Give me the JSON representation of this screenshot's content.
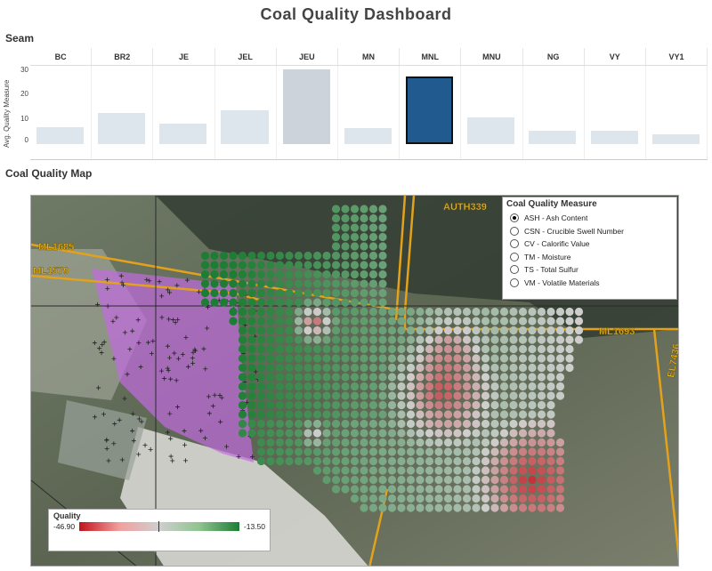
{
  "dashboard": {
    "title": "Coal Quality Dashboard"
  },
  "seam": {
    "label": "Seam",
    "y_axis_title": "Avg. Quality Measure",
    "y_ticks": [
      "30",
      "20",
      "10",
      "0"
    ],
    "columns": [
      {
        "name": "BC",
        "value": 7
      },
      {
        "name": "BR2",
        "value": 13
      },
      {
        "name": "JE",
        "value": 8.5
      },
      {
        "name": "JEL",
        "value": 14
      },
      {
        "name": "JEU",
        "value": 31,
        "state": "highlight"
      },
      {
        "name": "MN",
        "value": 6.5
      },
      {
        "name": "MNL",
        "value": 28,
        "state": "selected"
      },
      {
        "name": "MNU",
        "value": 11
      },
      {
        "name": "NG",
        "value": 5.5
      },
      {
        "name": "VY",
        "value": 5.5
      },
      {
        "name": "VY1",
        "value": 4
      }
    ],
    "ylim": [
      0,
      33
    ]
  },
  "map": {
    "label": "Coal Quality Map",
    "place_labels": [
      "AUTH339",
      "ML1685",
      "ML1579",
      "ML1693",
      "EL7436"
    ],
    "measure_panel": {
      "title": "Coal Quality Measure",
      "options": [
        {
          "label": "ASH - Ash Content",
          "checked": true
        },
        {
          "label": "CSN - Crucible Swell Number",
          "checked": false
        },
        {
          "label": "CV - Calorific Value",
          "checked": false
        },
        {
          "label": "TM - Moisture",
          "checked": false
        },
        {
          "label": "TS - Total Sulfur",
          "checked": false
        },
        {
          "label": "VM - Volatile Materials",
          "checked": false
        }
      ]
    },
    "quality_legend": {
      "title": "Quality",
      "min": "-46.90",
      "max": "-13.50",
      "colors": {
        "low": "#c0141b",
        "mid": "#cfcfcf",
        "high": "#1e7d34"
      }
    }
  }
}
